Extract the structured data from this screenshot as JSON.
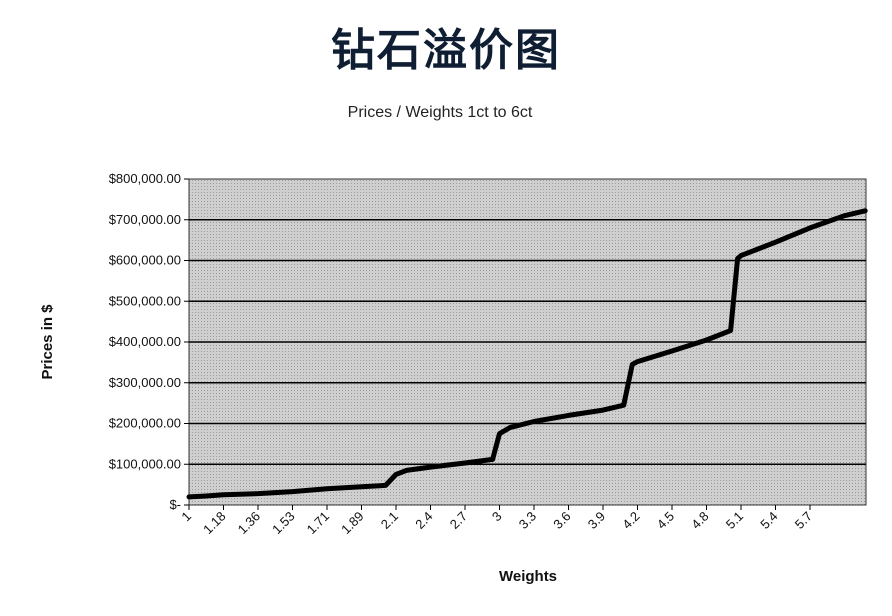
{
  "page": {
    "heading": "钻石溢价图"
  },
  "chart_data": {
    "type": "line",
    "title": "Prices / Weights 1ct to 6ct",
    "xlabel": "Weights",
    "ylabel": "Prices in $",
    "ylim": [
      0,
      800000
    ],
    "y_ticks": [
      {
        "value": 0,
        "label": "$-"
      },
      {
        "value": 100000,
        "label": "$100,000.00"
      },
      {
        "value": 200000,
        "label": "$200,000.00"
      },
      {
        "value": 300000,
        "label": "$300,000.00"
      },
      {
        "value": 400000,
        "label": "$400,000.00"
      },
      {
        "value": 500000,
        "label": "$500,000.00"
      },
      {
        "value": 600000,
        "label": "$600,000.00"
      },
      {
        "value": 700000,
        "label": "$700,000.00"
      },
      {
        "value": 800000,
        "label": "$800,000.00"
      }
    ],
    "x_tick_labels": [
      "1",
      "1.18",
      "1.36",
      "1.53",
      "1.71",
      "1.89",
      "2.1",
      "2.4",
      "2.7",
      "3",
      "3.3",
      "3.6",
      "3.9",
      "4.2",
      "4.5",
      "4.8",
      "5.1",
      "5.4",
      "5.7"
    ],
    "grid": "horizontal",
    "colors": {
      "plot_background": "#c8c8c8",
      "line": "#000000"
    },
    "series": [
      {
        "values": [
          {
            "i": 0,
            "y": 20000
          },
          {
            "i": 0.5,
            "y": 22000
          },
          {
            "i": 1,
            "y": 25000
          },
          {
            "i": 2,
            "y": 28000
          },
          {
            "i": 3,
            "y": 33000
          },
          {
            "i": 4,
            "y": 40000
          },
          {
            "i": 5,
            "y": 45000
          },
          {
            "i": 5.7,
            "y": 48000
          },
          {
            "i": 6,
            "y": 75000
          },
          {
            "i": 6.3,
            "y": 85000
          },
          {
            "i": 7,
            "y": 93000
          },
          {
            "i": 8,
            "y": 103000
          },
          {
            "i": 8.8,
            "y": 112000
          },
          {
            "i": 9,
            "y": 175000
          },
          {
            "i": 9.3,
            "y": 190000
          },
          {
            "i": 10,
            "y": 205000
          },
          {
            "i": 11,
            "y": 220000
          },
          {
            "i": 12,
            "y": 233000
          },
          {
            "i": 12.6,
            "y": 245000
          },
          {
            "i": 12.85,
            "y": 345000
          },
          {
            "i": 13,
            "y": 352000
          },
          {
            "i": 14,
            "y": 378000
          },
          {
            "i": 15,
            "y": 405000
          },
          {
            "i": 15.7,
            "y": 428000
          },
          {
            "i": 15.9,
            "y": 605000
          },
          {
            "i": 16,
            "y": 612000
          },
          {
            "i": 17,
            "y": 645000
          },
          {
            "i": 18,
            "y": 680000
          },
          {
            "i": 19,
            "y": 710000
          },
          {
            "i": 19.6,
            "y": 722000
          }
        ]
      }
    ]
  }
}
